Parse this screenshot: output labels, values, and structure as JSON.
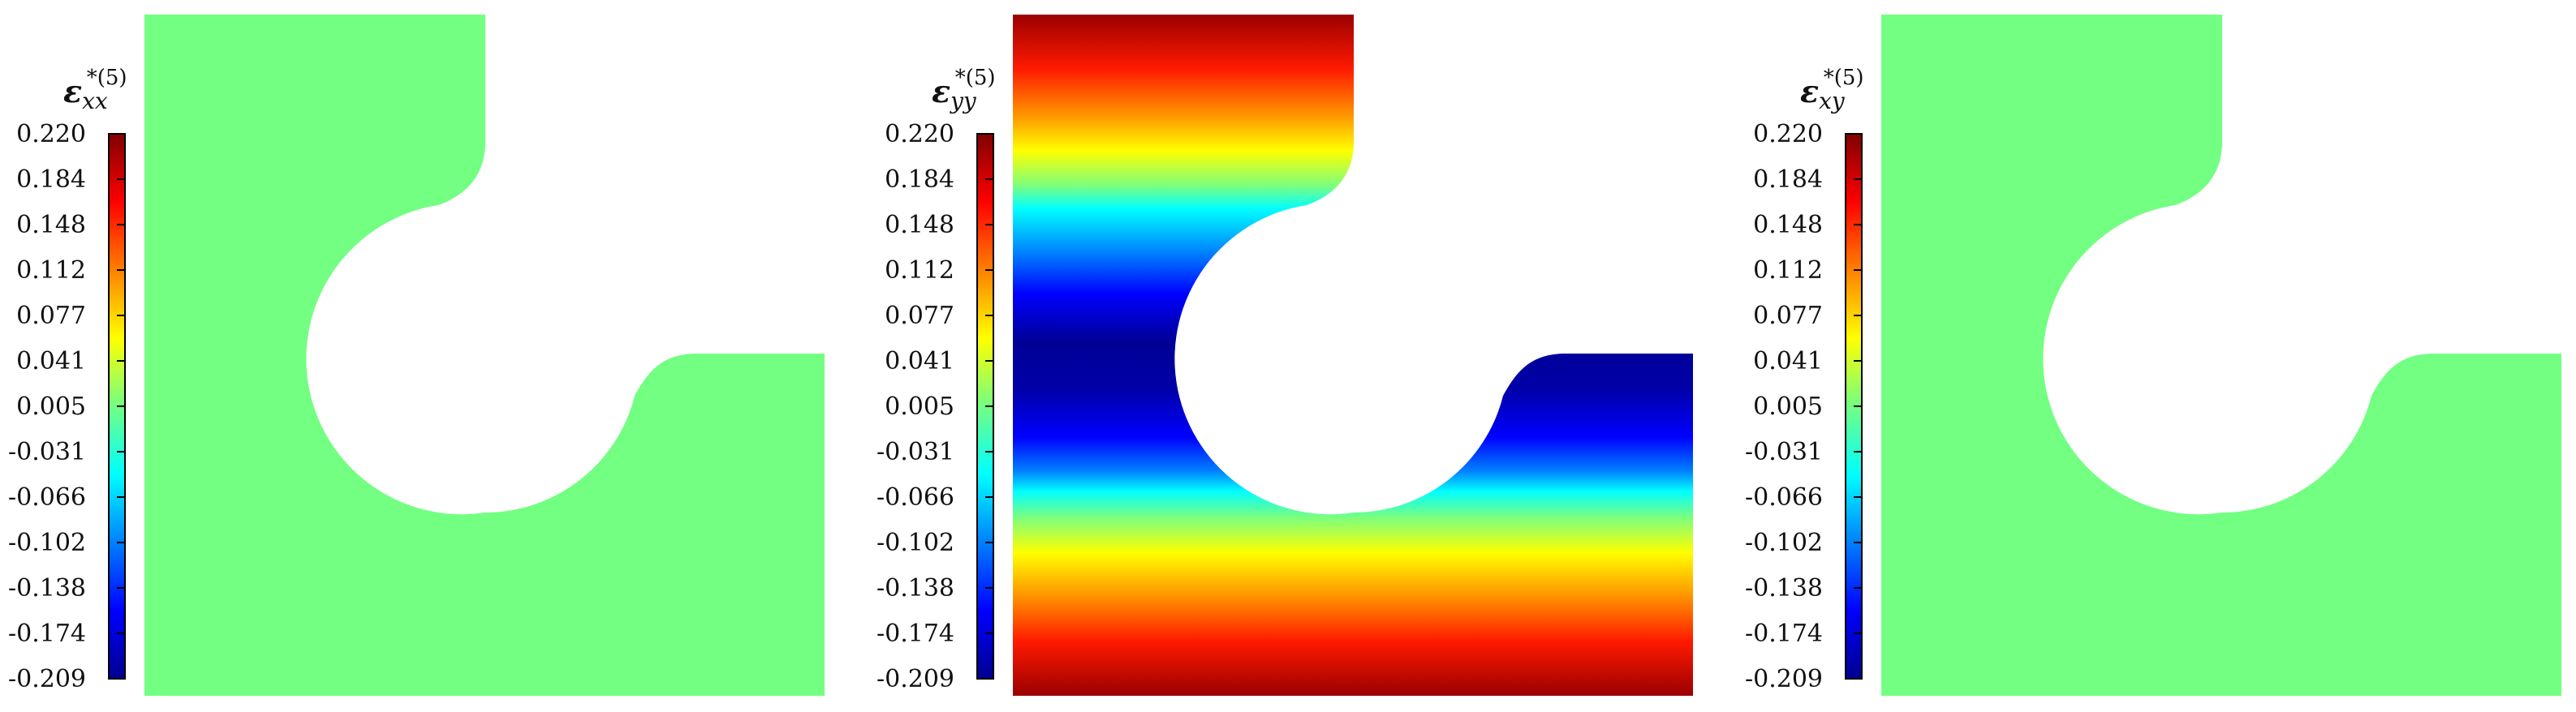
{
  "figure": {
    "panels": [
      {
        "symbol": "ε",
        "subscript": "xx",
        "superscript": "*(5)",
        "field": "uniform",
        "fill_color": "#73ff82",
        "colorbar_ticks": [
          "0.220",
          "0.184",
          "0.148",
          "0.112",
          "0.077",
          "0.041",
          "0.005",
          "-0.031",
          "-0.066",
          "-0.102",
          "-0.138",
          "-0.174",
          "-0.209"
        ]
      },
      {
        "symbol": "ε",
        "subscript": "yy",
        "superscript": "*(5)",
        "field": "vertical-gradient",
        "colorbar_ticks": [
          "0.220",
          "0.184",
          "0.148",
          "0.112",
          "0.077",
          "0.041",
          "0.005",
          "-0.031",
          "-0.066",
          "-0.102",
          "-0.138",
          "-0.174",
          "-0.209"
        ]
      },
      {
        "symbol": "ε",
        "subscript": "xy",
        "superscript": "*(5)",
        "field": "uniform",
        "fill_color": "#73ff82",
        "colorbar_ticks": [
          "0.220",
          "0.184",
          "0.148",
          "0.112",
          "0.077",
          "0.041",
          "0.005",
          "-0.031",
          "-0.066",
          "-0.102",
          "-0.138",
          "-0.174",
          "-0.209"
        ]
      }
    ],
    "colormap": "jet",
    "colormap_stops": [
      "#00008f",
      "#0000ff",
      "#00ffff",
      "#73ff82",
      "#ffff00",
      "#ff0000",
      "#800000"
    ]
  }
}
